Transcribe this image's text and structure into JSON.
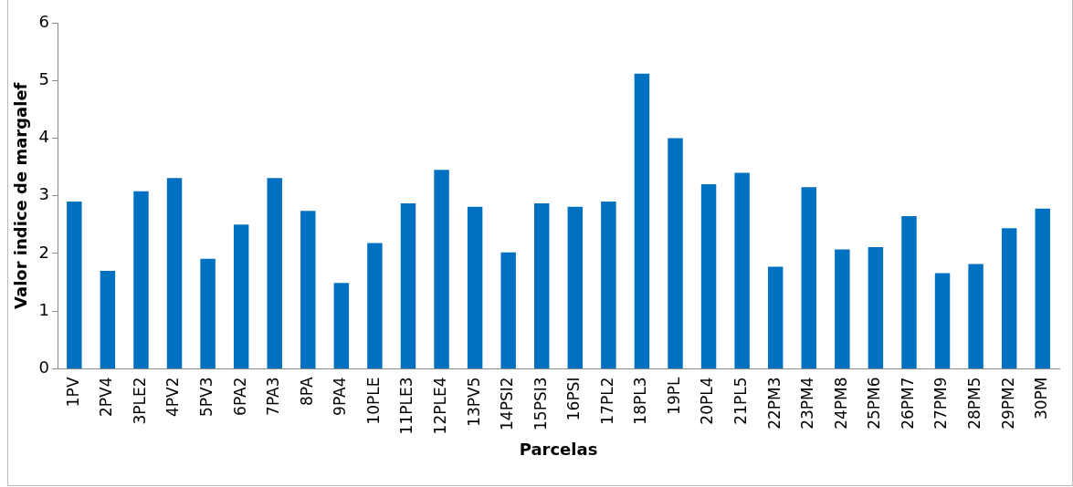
{
  "chart_data": {
    "type": "bar",
    "xlabel": "Parcelas",
    "ylabel": "Valor indice de margalef",
    "categories": [
      "1PV",
      "2PV4",
      "3PLE2",
      "4PV2",
      "5PV3",
      "6PA2",
      "7PA3",
      "8PA",
      "9PA4",
      "10PLE",
      "11PLE3",
      "12PLE4",
      "13PV5",
      "14PSI2",
      "15PSI3",
      "16PSI",
      "17PL2",
      "18PL3",
      "19PL",
      "20PL4",
      "21PL5",
      "22PM3",
      "23PM4",
      "24PM8",
      "25PM6",
      "26PM7",
      "27PM9",
      "28PM5",
      "29PM2",
      "30PM"
    ],
    "values": [
      2.9,
      1.7,
      3.08,
      3.31,
      1.91,
      2.5,
      3.31,
      2.74,
      1.49,
      2.18,
      2.87,
      3.45,
      2.81,
      2.02,
      2.87,
      2.81,
      2.9,
      5.12,
      4.0,
      3.2,
      3.4,
      1.77,
      3.15,
      2.07,
      2.11,
      2.65,
      1.66,
      1.82,
      2.44,
      2.78
    ],
    "color": "#0070c0",
    "ylim": [
      0,
      6
    ],
    "yticks": [
      0,
      1,
      2,
      3,
      4,
      5,
      6
    ],
    "grid": false,
    "legend": false
  }
}
